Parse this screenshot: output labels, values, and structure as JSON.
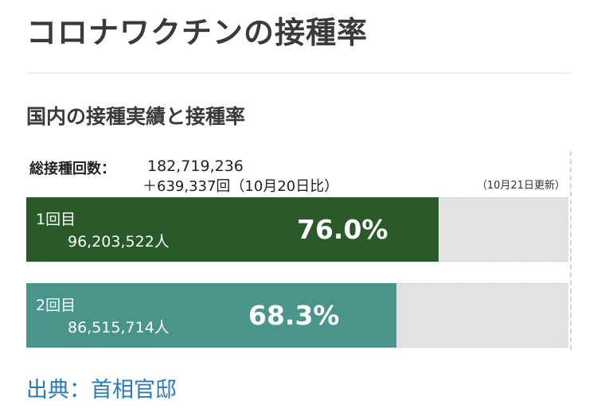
{
  "page_title": "コロナワクチンの接種率",
  "section_title": "国内の接種実績と接種率",
  "total": {
    "label": "総接種回数：",
    "value": "182,719,236",
    "diff": "＋639,337回（10月20日比）",
    "updated": "（10月21日更新）"
  },
  "doses": [
    {
      "label": "1回目",
      "count": "96,203,522人",
      "rate_text": "76.0%",
      "rate": 76.0,
      "color": "#2a5a2a"
    },
    {
      "label": "2回目",
      "count": "86,515,714人",
      "rate_text": "68.3%",
      "rate": 68.3,
      "color": "#4a948c"
    }
  ],
  "source": "出典：首相官邸"
}
